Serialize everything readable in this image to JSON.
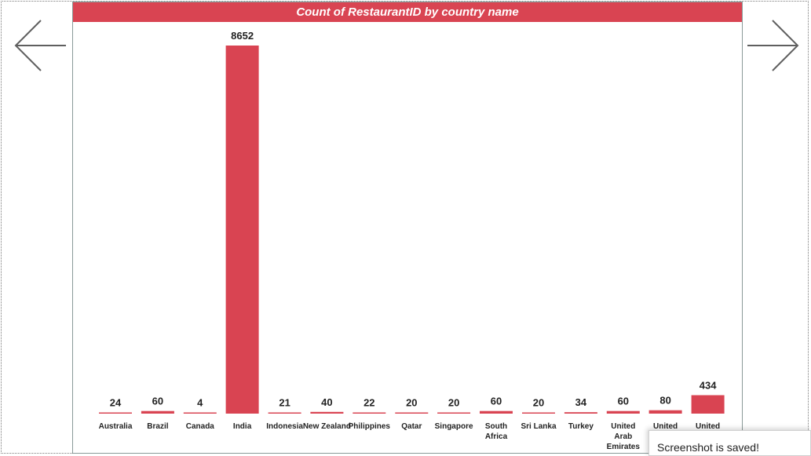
{
  "colors": {
    "bar": "#d94452",
    "title_bg": "#d94452",
    "nav_arrow": "#5f5f5f"
  },
  "nav": {
    "prev_icon": "arrow-left-icon",
    "next_icon": "arrow-right-icon"
  },
  "toast": {
    "message": "Screenshot is saved!"
  },
  "chart_data": {
    "type": "bar",
    "title": "Count of RestaurantID by country name",
    "xlabel": "",
    "ylabel": "",
    "categories": [
      "Australia",
      "Brazil",
      "Canada",
      "India",
      "Indonesia",
      "New Zealand",
      "Philippines",
      "Qatar",
      "Singapore",
      "South Africa",
      "Sri Lanka",
      "Turkey",
      "United Arab Emirates",
      "United",
      "United"
    ],
    "values": [
      24,
      60,
      4,
      8652,
      21,
      40,
      22,
      20,
      20,
      60,
      20,
      34,
      60,
      80,
      434
    ],
    "ylim": [
      0,
      8652
    ],
    "grid": false,
    "data_labels": true
  }
}
